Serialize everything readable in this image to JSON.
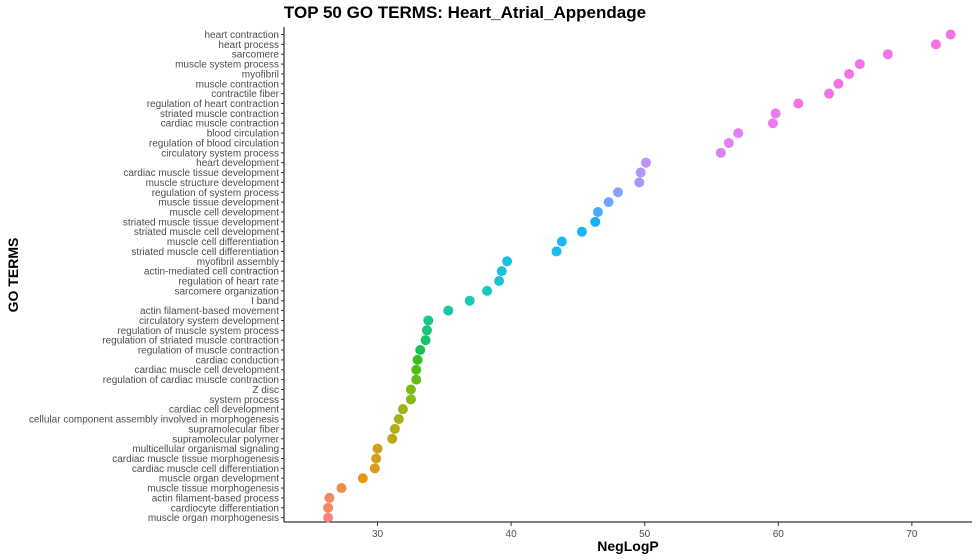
{
  "chart_data": {
    "type": "scatter",
    "title": "TOP 50 GO TERMS: Heart_Atrial_Appendage",
    "xlabel": "NegLogP",
    "ylabel": "GO TERMS",
    "xlim": [
      23,
      74.5
    ],
    "xticks": [
      30,
      40,
      50,
      60,
      70
    ],
    "grid": false,
    "points": [
      {
        "term": "heart contraction",
        "value": 72.9,
        "color": "#F564E3"
      },
      {
        "term": "heart process",
        "value": 71.8,
        "color": "#F564E3"
      },
      {
        "term": "sarcomere",
        "value": 68.2,
        "color": "#F564E3"
      },
      {
        "term": "muscle system process",
        "value": 66.1,
        "color": "#F564E3"
      },
      {
        "term": "myofibril",
        "value": 65.3,
        "color": "#F564E3"
      },
      {
        "term": "muscle contraction",
        "value": 64.5,
        "color": "#F564E3"
      },
      {
        "term": "contractile fiber",
        "value": 63.8,
        "color": "#F564E3"
      },
      {
        "term": "regulation of heart contraction",
        "value": 61.5,
        "color": "#F564E3"
      },
      {
        "term": "striated muscle contraction",
        "value": 59.8,
        "color": "#E76BF3"
      },
      {
        "term": "cardiac muscle contraction",
        "value": 59.6,
        "color": "#E76BF3"
      },
      {
        "term": "blood circulation",
        "value": 57.0,
        "color": "#DE72F5"
      },
      {
        "term": "regulation of blood circulation",
        "value": 56.3,
        "color": "#DE72F5"
      },
      {
        "term": "circulatory system process",
        "value": 55.7,
        "color": "#D674F7"
      },
      {
        "term": "heart development",
        "value": 50.1,
        "color": "#B385FF"
      },
      {
        "term": "cardiac muscle tissue development",
        "value": 49.7,
        "color": "#A58AFF"
      },
      {
        "term": "muscle structure development",
        "value": 49.6,
        "color": "#9590FF"
      },
      {
        "term": "regulation of system process",
        "value": 48.0,
        "color": "#7997FF"
      },
      {
        "term": "muscle tissue development",
        "value": 47.3,
        "color": "#619CFF"
      },
      {
        "term": "muscle cell development",
        "value": 46.5,
        "color": "#35A2FF"
      },
      {
        "term": "striated muscle tissue development",
        "value": 46.3,
        "color": "#00A9FF"
      },
      {
        "term": "striated muscle cell development",
        "value": 45.3,
        "color": "#00ADFA"
      },
      {
        "term": "muscle cell differentiation",
        "value": 43.8,
        "color": "#00B0F6"
      },
      {
        "term": "striated muscle cell differentiation",
        "value": 43.4,
        "color": "#00B5EE"
      },
      {
        "term": "myofibril assembly",
        "value": 39.7,
        "color": "#00B9E3"
      },
      {
        "term": "actin-mediated cell contraction",
        "value": 39.3,
        "color": "#00BCD8"
      },
      {
        "term": "regulation of heart rate",
        "value": 39.1,
        "color": "#00BECA"
      },
      {
        "term": "sarcomere organization",
        "value": 38.2,
        "color": "#00C0BC"
      },
      {
        "term": "I band",
        "value": 36.9,
        "color": "#00C1AA"
      },
      {
        "term": "actin filament-based movement",
        "value": 35.3,
        "color": "#00C19A"
      },
      {
        "term": "circulatory system development",
        "value": 33.8,
        "color": "#00BF7D"
      },
      {
        "term": "regulation of muscle system process",
        "value": 33.7,
        "color": "#00BE70"
      },
      {
        "term": "regulation of striated muscle contraction",
        "value": 33.6,
        "color": "#00BC59"
      },
      {
        "term": "regulation of muscle contraction",
        "value": 33.2,
        "color": "#00BA38"
      },
      {
        "term": "cardiac conduction",
        "value": 33.0,
        "color": "#22B600"
      },
      {
        "term": "cardiac muscle cell development",
        "value": 32.9,
        "color": "#39B600"
      },
      {
        "term": "regulation of cardiac muscle contraction",
        "value": 32.9,
        "color": "#53B400"
      },
      {
        "term": "Z disc",
        "value": 32.5,
        "color": "#6BB100"
      },
      {
        "term": "system process",
        "value": 32.5,
        "color": "#7CAE00"
      },
      {
        "term": "cardiac cell development",
        "value": 31.9,
        "color": "#8EAB00"
      },
      {
        "term": "cellular component assembly involved in morphogenesis",
        "value": 31.6,
        "color": "#9EA700"
      },
      {
        "term": "supramolecular fiber",
        "value": 31.3,
        "color": "#ADA200"
      },
      {
        "term": "supramolecular polymer",
        "value": 31.1,
        "color": "#B79F00"
      },
      {
        "term": "multicellular organismal signaling",
        "value": 30.0,
        "color": "#C49A00"
      },
      {
        "term": "cardiac muscle tissue morphogenesis",
        "value": 29.9,
        "color": "#CD9600"
      },
      {
        "term": "cardiac muscle cell differentiation",
        "value": 29.8,
        "color": "#D89000"
      },
      {
        "term": "muscle organ development",
        "value": 28.9,
        "color": "#E38900"
      },
      {
        "term": "muscle tissue morphogenesis",
        "value": 27.3,
        "color": "#EA8331"
      },
      {
        "term": "actin filament-based process",
        "value": 26.4,
        "color": "#F17D50"
      },
      {
        "term": "cardiocyte differentiation",
        "value": 26.3,
        "color": "#F37B59"
      },
      {
        "term": "muscle organ morphogenesis",
        "value": 26.3,
        "color": "#F8766D"
      }
    ]
  }
}
